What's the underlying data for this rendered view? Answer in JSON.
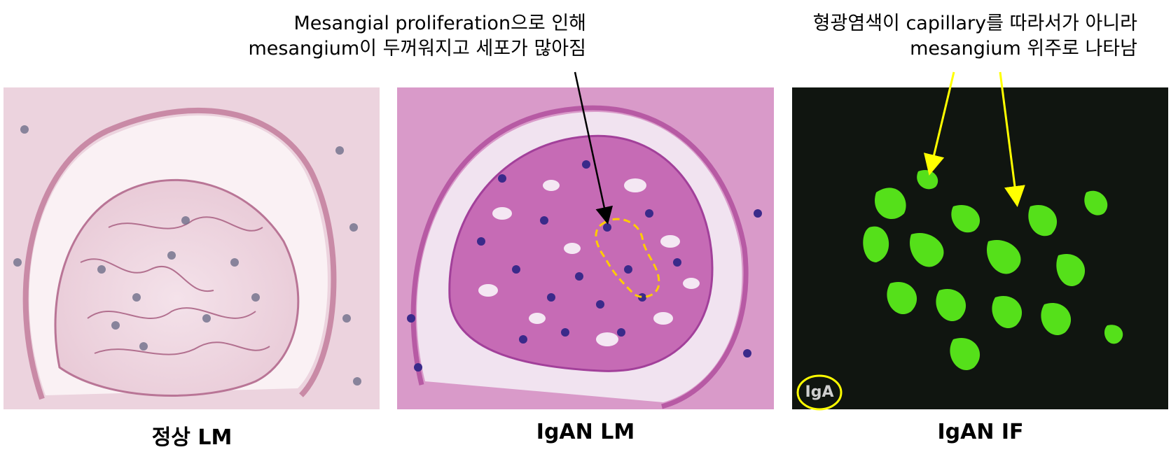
{
  "annotations": {
    "lm_note_line1": "Mesangial proliferation으로 인해",
    "lm_note_line2": "mesangium이 두꺼워지고 세포가 많아짐",
    "if_note_line1": "형광염색이 capillary를 따라서가 아니라",
    "if_note_line2": "mesangium 위주로 나타남"
  },
  "captions": {
    "normal_lm": "정상 LM",
    "igan_lm": "IgAN LM",
    "igan_if": "IgAN IF"
  },
  "if_panel_label": "IgA",
  "colors": {
    "lm_note_arrow": "#000000",
    "if_note_arrow": "#ffff00",
    "highlight": "#ffcc00",
    "if_fluorescence": "#55e01a"
  }
}
